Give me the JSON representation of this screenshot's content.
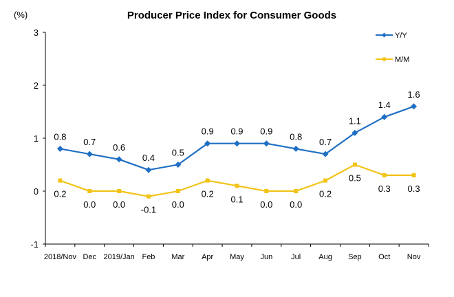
{
  "chart_data": {
    "type": "line",
    "title": "Producer Price Index for Consumer Goods",
    "ylabel": "(%)",
    "xlabel": "",
    "ylim": [
      -1,
      3
    ],
    "yticks": [
      "3",
      "2",
      "1",
      "0",
      "-1"
    ],
    "grid": false,
    "legend_position": "top-right",
    "categories": [
      "2018/Nov",
      "Dec",
      "2019/Jan",
      "Feb",
      "Mar",
      "Apr",
      "May",
      "Jun",
      "Jul",
      "Aug",
      "Sep",
      "Oct",
      "Nov"
    ],
    "series": [
      {
        "name": "Y/Y",
        "color": "#1F6FC4",
        "marker": "diamond",
        "values": [
          0.8,
          0.7,
          0.6,
          0.4,
          0.5,
          0.9,
          0.9,
          0.9,
          0.8,
          0.7,
          1.1,
          1.4,
          1.6
        ],
        "labels": [
          "0.8",
          "0.7",
          "0.6",
          "0.4",
          "0.5",
          "0.9",
          "0.9",
          "0.9",
          "0.8",
          "0.7",
          "1.1",
          "1.4",
          "1.6"
        ],
        "label_position": "above"
      },
      {
        "name": "M/M",
        "color": "#F2C316",
        "marker": "square",
        "values": [
          0.2,
          0.0,
          0.0,
          -0.1,
          0.0,
          0.2,
          0.1,
          0.0,
          0.0,
          0.2,
          0.5,
          0.3,
          0.3
        ],
        "labels": [
          "0.2",
          "0.0",
          "0.0",
          "-0.1",
          "0.0",
          "0.2",
          "0.1",
          "0.0",
          "0.0",
          "0.2",
          "0.5",
          "0.3",
          "0.3"
        ],
        "label_position": "below"
      }
    ]
  }
}
